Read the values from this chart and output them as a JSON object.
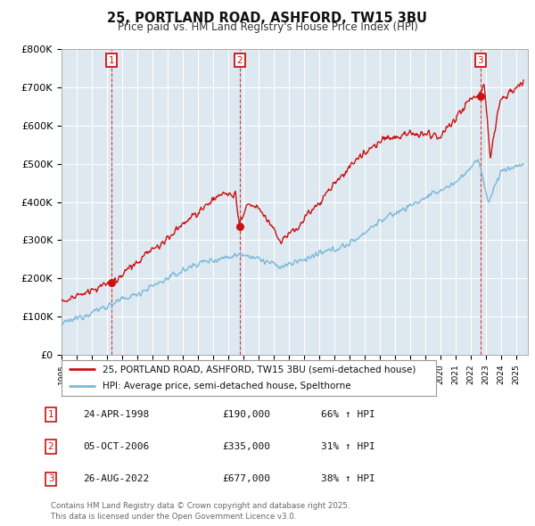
{
  "title": "25, PORTLAND ROAD, ASHFORD, TW15 3BU",
  "subtitle": "Price paid vs. HM Land Registry's House Price Index (HPI)",
  "ylim": [
    0,
    800000
  ],
  "yticks": [
    0,
    100000,
    200000,
    300000,
    400000,
    500000,
    600000,
    700000,
    800000
  ],
  "ytick_labels": [
    "£0",
    "£100K",
    "£200K",
    "£300K",
    "£400K",
    "£500K",
    "£600K",
    "£700K",
    "£800K"
  ],
  "sale_dates": [
    1998.32,
    2006.76,
    2022.65
  ],
  "sale_prices": [
    190000,
    335000,
    677000
  ],
  "sale_labels": [
    "1",
    "2",
    "3"
  ],
  "hpi_color": "#7ab8d8",
  "property_color": "#cc1111",
  "legend_property": "25, PORTLAND ROAD, ASHFORD, TW15 3BU (semi-detached house)",
  "legend_hpi": "HPI: Average price, semi-detached house, Spelthorne",
  "table_rows": [
    [
      "1",
      "24-APR-1998",
      "£190,000",
      "66% ↑ HPI"
    ],
    [
      "2",
      "05-OCT-2006",
      "£335,000",
      "31% ↑ HPI"
    ],
    [
      "3",
      "26-AUG-2022",
      "£677,000",
      "38% ↑ HPI"
    ]
  ],
  "footnote": "Contains HM Land Registry data © Crown copyright and database right 2025.\nThis data is licensed under the Open Government Licence v3.0.",
  "background_color": "#dde8f0",
  "grid_color": "#ffffff"
}
